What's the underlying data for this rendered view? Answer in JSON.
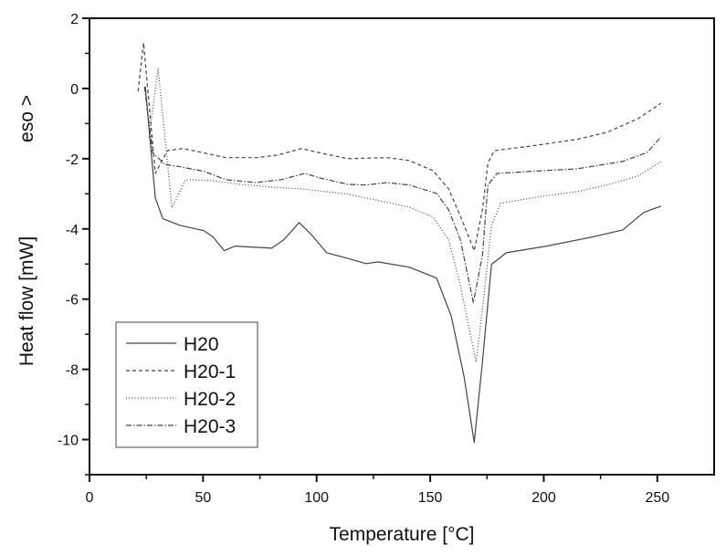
{
  "chart_data": {
    "type": "line",
    "title": "",
    "xlabel": "Temperature [°C]",
    "ylabel": "Heat flow  [mW]",
    "ylabel_annotation": "eso >",
    "xlim": [
      0,
      275
    ],
    "ylim": [
      -11,
      2
    ],
    "xticks": [
      0,
      50,
      100,
      150,
      200,
      250
    ],
    "yticks": [
      2,
      0,
      -2,
      -4,
      -6,
      -8,
      -10
    ],
    "grid": false,
    "legend_position": "bottom-left",
    "line_color": "#444444",
    "series": [
      {
        "name": "H20",
        "style": "solid",
        "x": [
          24.6,
          25.8,
          29.0,
          32.3,
          39.9,
          50.4,
          54.4,
          59.3,
          64.1,
          80.2,
          85.5,
          92.3,
          97.6,
          104.4,
          113.7,
          121.8,
          127.0,
          140.7,
          152.8,
          159.3,
          164.9,
          169.4,
          173.0,
          177.0,
          183.5,
          201.2,
          221.4,
          234.7,
          244.0,
          251.6
        ],
        "y": [
          0.05,
          -0.86,
          -3.12,
          -3.71,
          -3.9,
          -4.05,
          -4.23,
          -4.62,
          -4.49,
          -4.55,
          -4.31,
          -3.82,
          -4.16,
          -4.68,
          -4.84,
          -4.99,
          -4.94,
          -5.09,
          -5.4,
          -6.49,
          -8.21,
          -10.08,
          -7.79,
          -5.01,
          -4.68,
          -4.49,
          -4.23,
          -4.03,
          -3.53,
          -3.35
        ]
      },
      {
        "name": "H20-1",
        "style": "dashed",
        "x": [
          21.4,
          23.8,
          29.0,
          34.3,
          41.1,
          49.2,
          60.1,
          73.4,
          82.7,
          93.5,
          100.4,
          113.7,
          131.0,
          140.7,
          151.2,
          158.1,
          163.3,
          169.4,
          173.0,
          175.4,
          178.2,
          194.4,
          214.5,
          227.8,
          241.5,
          251.6
        ],
        "y": [
          -0.08,
          1.3,
          -2.42,
          -1.77,
          -1.71,
          -1.82,
          -1.97,
          -1.97,
          -1.9,
          -1.71,
          -1.82,
          -2.0,
          -1.97,
          -2.05,
          -2.34,
          -2.86,
          -3.64,
          -4.62,
          -3.45,
          -2.13,
          -1.77,
          -1.64,
          -1.45,
          -1.25,
          -0.86,
          -0.42
        ]
      },
      {
        "name": "H20-2",
        "style": "dotted",
        "x": [
          26.2,
          30.2,
          36.3,
          42.3,
          53.2,
          66.5,
          80.2,
          93.5,
          113.7,
          127.0,
          140.7,
          151.2,
          158.1,
          163.3,
          170.2,
          173.4,
          177.0,
          181.0,
          194.4,
          214.5,
          227.8,
          241.5,
          251.6
        ],
        "y": [
          -1.4,
          0.57,
          -3.4,
          -2.6,
          -2.62,
          -2.73,
          -2.81,
          -2.86,
          -3.01,
          -3.19,
          -3.38,
          -3.66,
          -4.31,
          -5.61,
          -7.79,
          -6.05,
          -3.9,
          -3.27,
          -3.12,
          -2.94,
          -2.75,
          -2.49,
          -2.08
        ]
      },
      {
        "name": "H20-3",
        "style": "dash-dot",
        "x": [
          24.2,
          27.8,
          33.1,
          39.9,
          50.4,
          60.1,
          73.4,
          84.3,
          94.8,
          101.6,
          113.7,
          121.8,
          131.0,
          140.7,
          152.8,
          158.1,
          163.3,
          169.0,
          173.0,
          175.4,
          179.4,
          194.4,
          214.5,
          234.7,
          245.6,
          251.6
        ],
        "y": [
          0.05,
          -1.82,
          -2.16,
          -2.23,
          -2.36,
          -2.6,
          -2.68,
          -2.6,
          -2.42,
          -2.55,
          -2.73,
          -2.75,
          -2.68,
          -2.75,
          -2.99,
          -3.45,
          -4.31,
          -6.1,
          -4.75,
          -2.75,
          -2.42,
          -2.36,
          -2.29,
          -2.08,
          -1.82,
          -1.38
        ]
      }
    ]
  }
}
